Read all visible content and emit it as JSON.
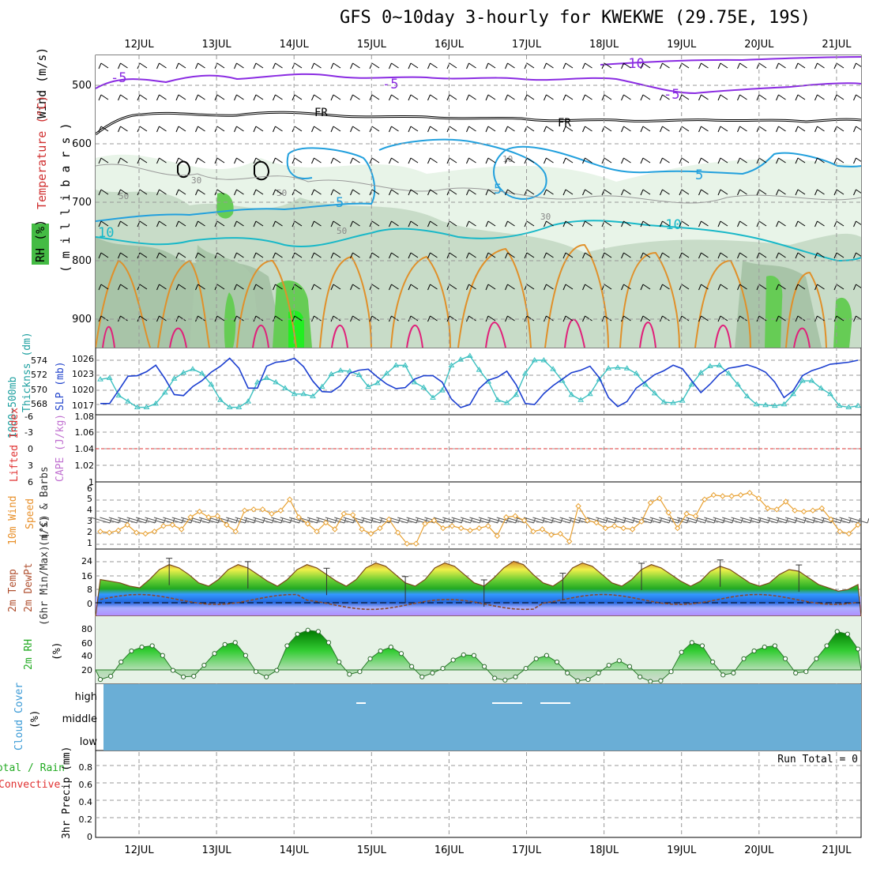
{
  "title": "GFS 0~10day 3-hourly for KWEKWE (29.75E, 19S)",
  "dates": [
    "12JUL",
    "13JUL",
    "14JUL",
    "15JUL",
    "16JUL",
    "17JUL",
    "18JUL",
    "19JUL",
    "20JUL",
    "21JUL"
  ],
  "panels": {
    "upper": {
      "labels": [
        "Wind (m/s)",
        "Temperature (°C)",
        "RH (%)"
      ],
      "axis_label": "( m i l l i b a r s )",
      "pressure_ticks": [
        "500",
        "600",
        "700",
        "800",
        "900"
      ],
      "contour_labels": [
        "-10",
        "-5",
        "-5",
        "-5",
        "FR",
        "FR",
        "5",
        "5",
        "5",
        "10",
        "-10",
        "30",
        "50",
        "50",
        "50",
        "30",
        "10"
      ]
    },
    "thickness": {
      "labels": [
        "1000~500mb",
        "Thicknss (dm)",
        "SLP (mb)"
      ],
      "left_ticks": [
        "574",
        "572",
        "570",
        "568"
      ],
      "right_ticks": [
        "1026",
        "1023",
        "1020",
        "1017"
      ]
    },
    "stability": {
      "labels": [
        "Lifted Index",
        "CAPE (J/kg)"
      ],
      "left_ticks": [
        "-6",
        "-3",
        "0",
        "3",
        "6"
      ],
      "right_ticks": [
        "1.08",
        "1.06",
        "1.04",
        "1.02",
        "1"
      ]
    },
    "wind10m": {
      "labels": [
        "10m Wind",
        "Speed",
        "(m/s) & Barbs"
      ],
      "ticks": [
        "6",
        "5",
        "4",
        "3",
        "2",
        "1"
      ]
    },
    "temp2m": {
      "labels": [
        "2m Temp",
        "2m DewPt",
        "(6hr Min/Max) (°C)"
      ],
      "ticks": [
        "24",
        "16",
        "8",
        "0"
      ]
    },
    "rh2m": {
      "labels": [
        "2m RH",
        "(%)"
      ],
      "ticks": [
        "80",
        "60",
        "40",
        "20"
      ]
    },
    "cloud": {
      "labels": [
        "Cloud Cover",
        "(%)"
      ],
      "levels": [
        "high",
        "middle",
        "low"
      ]
    },
    "precip": {
      "labels": [
        "Total / Rain",
        "Convective",
        "3hr Precip (mm)"
      ],
      "ticks": [
        "0.8",
        "0.6",
        "0.4",
        "0.2",
        "0"
      ],
      "run_total": "Run Total = 0"
    }
  },
  "colors": {
    "rh_green": "#66cc66",
    "temp_purple": "#8a2be2",
    "temp_blue": "#22a0dd",
    "temp_cyan": "#18b8c8",
    "temp_orange": "#e0902a",
    "temp_magenta": "#e0207a",
    "slp_blue": "#1c3fd0",
    "thick_cyan": "#3cc0c0",
    "wind_orange": "#e8a030",
    "cloud_blue": "#6aaed6",
    "li_red": "#e03030"
  },
  "chart_data": [
    {
      "type": "line",
      "name": "thickness_slp",
      "series": [
        {
          "name": "1000~500mb Thickness (dm)",
          "axis": "left",
          "values": [
            571.4,
            571.6,
            569.2,
            568.4,
            567.6,
            567.6,
            568.1,
            569.6,
            571.5,
            572.3,
            572.8,
            572.2,
            570.7,
            568.6,
            567.6,
            567.6,
            568.4,
            571.0,
            571.6,
            571.0,
            570.2,
            569.4,
            569.4,
            569.1,
            570.4,
            572.1,
            572.6,
            572.5,
            572.0,
            570.4,
            570.9,
            572.2,
            573.3,
            573.3,
            571.0,
            570.3,
            568.9,
            569.9,
            573.3,
            574.1,
            574.6,
            572.7,
            571.1,
            568.6,
            568.2,
            569.3,
            572.2,
            574.0,
            574.0,
            572.8,
            571.2,
            569.3,
            568.6,
            569.4,
            571.4,
            572.9,
            573.0,
            572.9,
            572.2,
            570.7,
            569.5,
            568.3,
            568.2,
            568.5,
            570.7,
            572.3,
            573.2,
            573.3,
            572.2,
            570.7,
            569.1,
            568.0,
            567.9,
            567.8,
            568.0,
            569.4,
            571.2,
            571.2,
            570.2,
            569.4,
            567.8,
            567.6,
            567.8
          ]
        },
        {
          "name": "SLP (mb)",
          "axis": "right",
          "values": [
            1017.3,
            1017.3,
            1020.0,
            1022.8,
            1022.9,
            1023.7,
            1025.0,
            1022.3,
            1019.1,
            1018.9,
            1020.7,
            1021.9,
            1023.6,
            1024.8,
            1026.4,
            1024.4,
            1020.4,
            1020.4,
            1024.8,
            1025.6,
            1025.8,
            1026.4,
            1024.7,
            1021.8,
            1019.7,
            1019.6,
            1020.9,
            1023.4,
            1024.0,
            1024.2,
            1022.6,
            1021.2,
            1020.3,
            1020.5,
            1022.2,
            1022.9,
            1022.9,
            1021.6,
            1018.2,
            1016.5,
            1017.1,
            1020.3,
            1022.0,
            1022.6,
            1023.8,
            1021.1,
            1017.3,
            1017.1,
            1019.3,
            1020.9,
            1022.2,
            1023.5,
            1024.0,
            1024.8,
            1022.5,
            1018.5,
            1016.7,
            1017.7,
            1020.4,
            1021.7,
            1023.1,
            1023.9,
            1025.0,
            1024.3,
            1021.9,
            1019.5,
            1021.2,
            1023.2,
            1024.4,
            1024.7,
            1025.1,
            1024.5,
            1023.6,
            1021.6,
            1018.5,
            1019.9,
            1022.9,
            1023.9,
            1024.5,
            1025.2,
            1025.4,
            1025.6,
            1026.0
          ]
        }
      ]
    },
    {
      "type": "line",
      "name": "10m_wind_speed",
      "unit": "m/s",
      "values": [
        2.3,
        2.2,
        2.4,
        2.9,
        2.2,
        2.1,
        2.3,
        2.8,
        2.9,
        2.5,
        3.6,
        4.1,
        3.6,
        3.7,
        2.9,
        2.3,
        4.2,
        4.3,
        4.3,
        3.9,
        4.2,
        5.2,
        3.6,
        3.0,
        2.3,
        3.1,
        2.5,
        3.9,
        3.8,
        2.5,
        2.1,
        2.6,
        3.4,
        2.2,
        1.2,
        1.2,
        3.0,
        3.3,
        2.6,
        2.8,
        2.6,
        2.4,
        2.6,
        2.8,
        1.9,
        3.6,
        3.7,
        3.3,
        2.3,
        2.5,
        2.0,
        2.1,
        1.4,
        4.6,
        3.3,
        3.1,
        2.6,
        2.8,
        2.6,
        2.5,
        3.2,
        4.9,
        5.3,
        4.0,
        2.6,
        3.9,
        3.7,
        5.2,
        5.6,
        5.5,
        5.5,
        5.6,
        5.8,
        5.3,
        4.4,
        4.3,
        5.0,
        4.2,
        4.1,
        4.2,
        4.4,
        3.4,
        2.3,
        2.1,
        2.9
      ]
    },
    {
      "type": "area",
      "name": "2m_temperature",
      "unit": "°C",
      "values": [
        14,
        13,
        12,
        10,
        9,
        14,
        20,
        23,
        21,
        17,
        12,
        10,
        14,
        20,
        23,
        21,
        17,
        13,
        10,
        14,
        20,
        23,
        21,
        17,
        13,
        10,
        14,
        21,
        24,
        22,
        17,
        12,
        10,
        14,
        21,
        24,
        22,
        17,
        12,
        10,
        15,
        21,
        25,
        23,
        17,
        12,
        10,
        14,
        21,
        24,
        22,
        17,
        12,
        10,
        14,
        20,
        23,
        21,
        17,
        13,
        10,
        13,
        19,
        22,
        20,
        16,
        12,
        10,
        12,
        17,
        20,
        19,
        15,
        11,
        9,
        7,
        8,
        11
      ]
    },
    {
      "type": "area",
      "name": "2m_rh",
      "unit": "%",
      "values": [
        18,
        23,
        45,
        62,
        68,
        70,
        55,
        32,
        22,
        23,
        40,
        58,
        72,
        75,
        55,
        30,
        22,
        32,
        70,
        88,
        94,
        92,
        75,
        45,
        26,
        30,
        50,
        62,
        68,
        58,
        38,
        22,
        28,
        35,
        48,
        56,
        55,
        38,
        20,
        17,
        22,
        35,
        50,
        55,
        45,
        28,
        16,
        18,
        28,
        40,
        47,
        38,
        22,
        15,
        16,
        30,
        60,
        75,
        70,
        45,
        25,
        28,
        50,
        62,
        68,
        70,
        50,
        28,
        30,
        50,
        70,
        92,
        88,
        65
      ]
    },
    {
      "type": "bar",
      "name": "3hr_precip",
      "unit": "mm",
      "values": [
        0
      ]
    }
  ]
}
